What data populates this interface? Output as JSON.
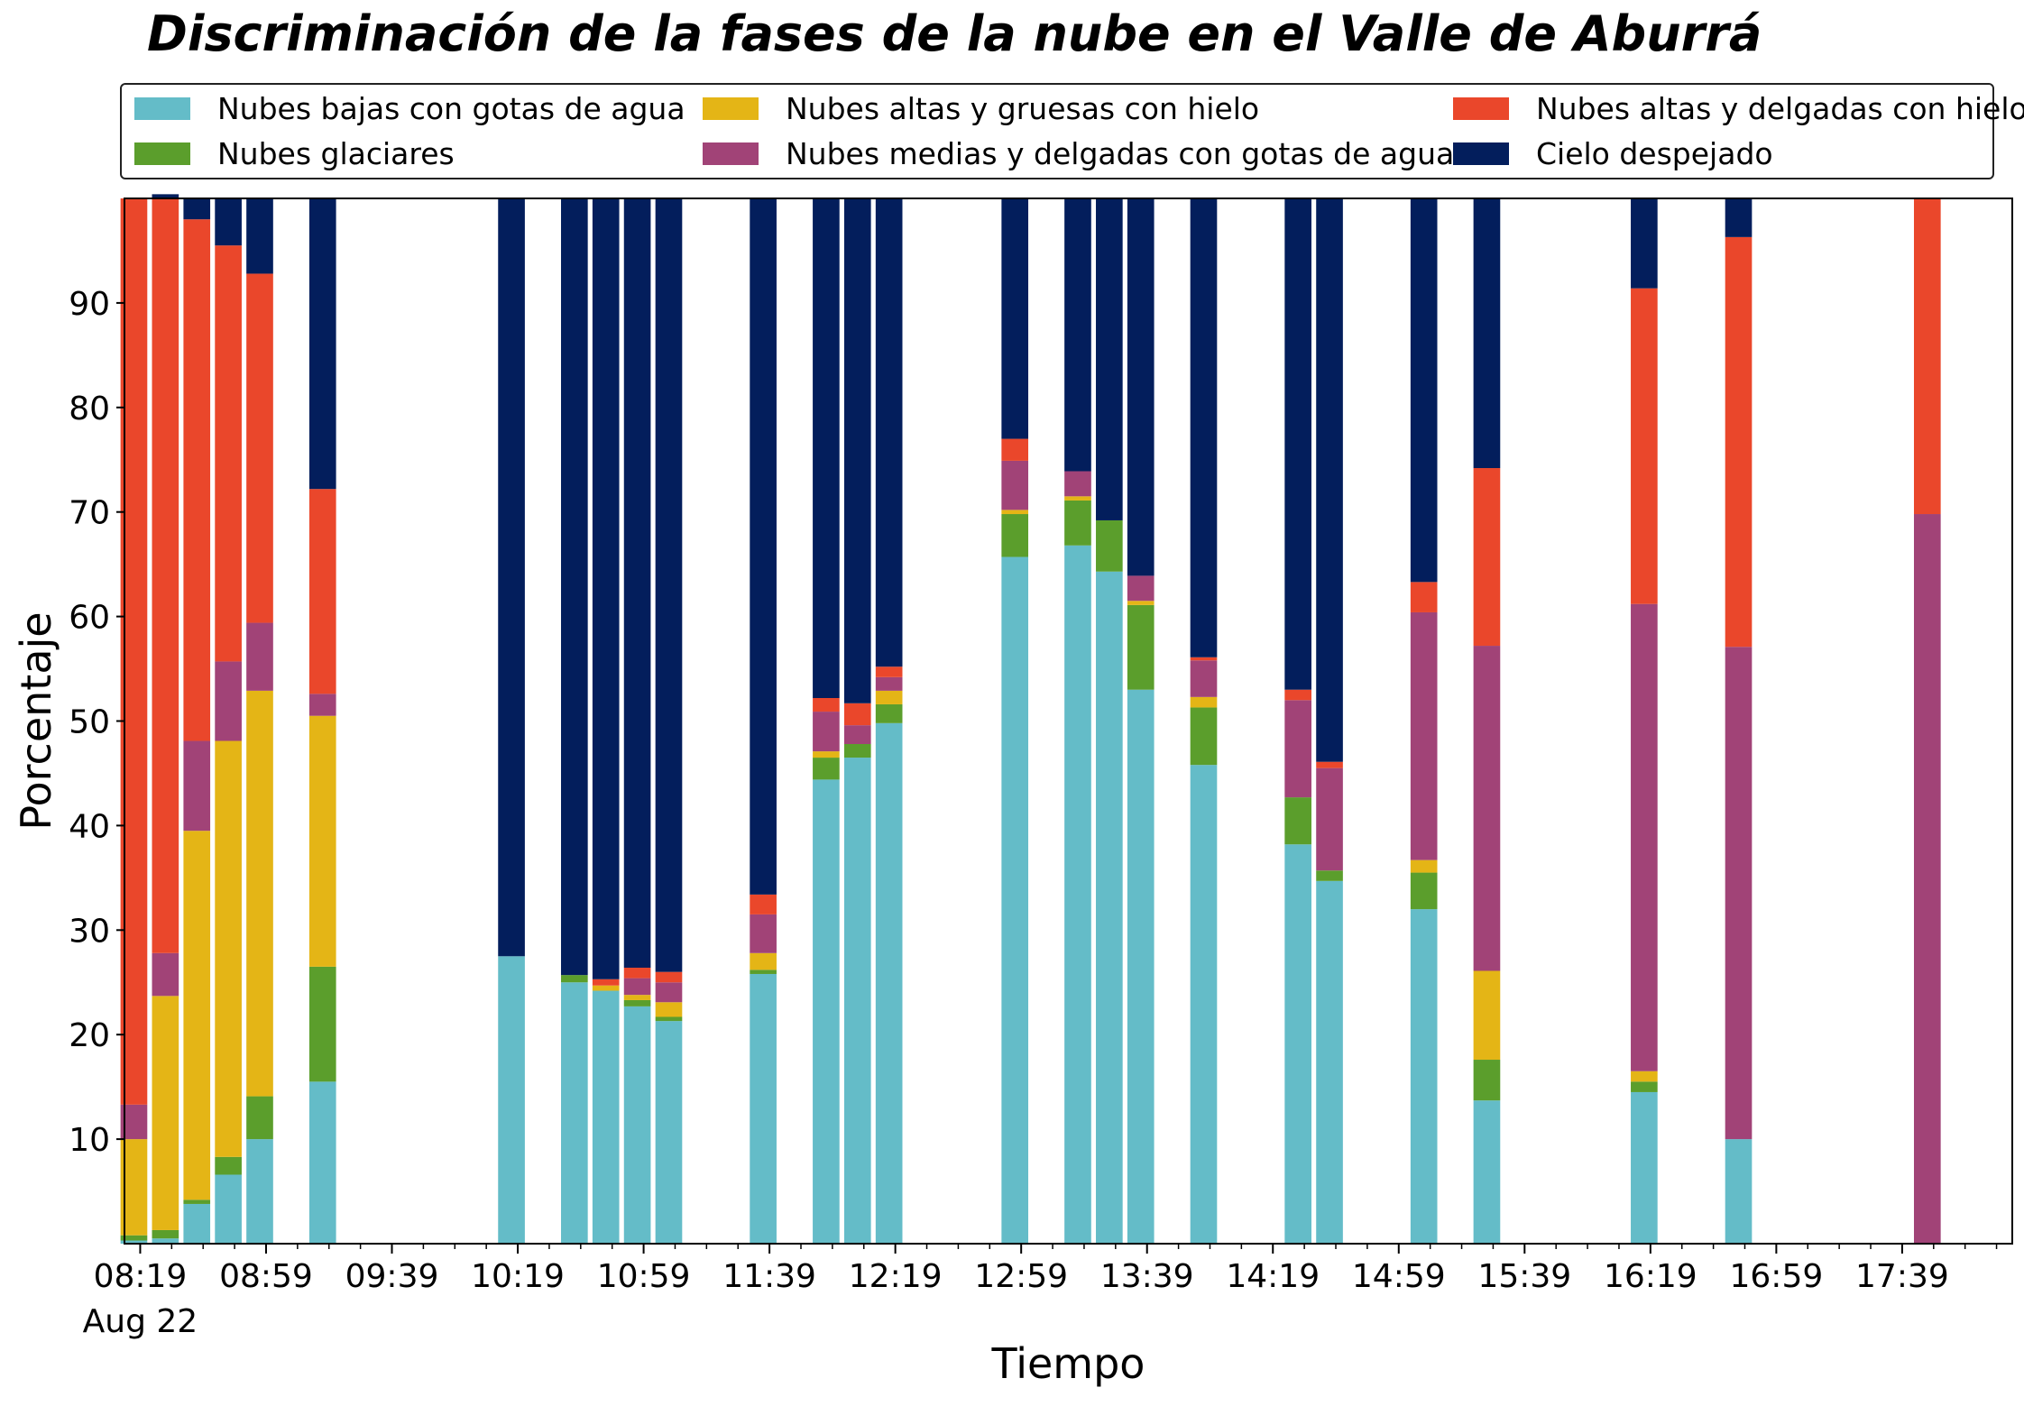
{
  "chart_data": {
    "type": "bar",
    "stacked": true,
    "title": "Discriminación de la fases de la nube en el Valle de Aburrá",
    "xlabel": "Tiempo",
    "ylabel": "Porcentaje",
    "ylim": [
      0,
      100
    ],
    "yticks": [
      10,
      20,
      30,
      40,
      50,
      60,
      70,
      80,
      90
    ],
    "xlim": [
      "08:14",
      "18:14"
    ],
    "xtick_labels": [
      "08:19",
      "08:59",
      "09:39",
      "10:19",
      "10:59",
      "11:39",
      "12:19",
      "12:59",
      "13:39",
      "14:19",
      "14:59",
      "15:39",
      "16:19",
      "16:59",
      "17:39"
    ],
    "x_date_label": "Aug 22",
    "legend_placement": "top",
    "grid": false,
    "bar_width_minutes": 8.5,
    "x": [
      "08:17",
      "08:27",
      "08:37",
      "08:47",
      "08:57",
      "09:17",
      "10:17",
      "10:37",
      "10:47",
      "10:57",
      "11:07",
      "11:37",
      "11:57",
      "12:07",
      "12:17",
      "12:57",
      "13:17",
      "13:27",
      "13:37",
      "13:57",
      "14:27",
      "14:37",
      "15:07",
      "15:27",
      "16:17",
      "16:47",
      "17:47"
    ],
    "series": [
      {
        "name": "Nubes bajas con gotas de agua",
        "color": "#64bcc8",
        "values": [
          0.3,
          0.5,
          3.8,
          6.6,
          10.0,
          15.5,
          27.5,
          25.0,
          24.2,
          22.7,
          21.3,
          25.8,
          44.4,
          46.5,
          49.8,
          65.7,
          66.8,
          64.3,
          53.0,
          45.8,
          38.2,
          34.7,
          32.0,
          13.7,
          14.5,
          10.0,
          0
        ]
      },
      {
        "name": "Nubes glaciares",
        "color": "#5b9e2c",
        "values": [
          0.5,
          0.8,
          0.4,
          1.7,
          4.1,
          11.0,
          0,
          0.7,
          0,
          0.6,
          0.4,
          0.4,
          2.1,
          1.3,
          1.8,
          4.1,
          4.3,
          4.9,
          8.1,
          5.5,
          4.5,
          1.0,
          3.5,
          3.9,
          1.0,
          0,
          0
        ]
      },
      {
        "name": "Nubes altas y gruesas con hielo",
        "color": "#e4b516",
        "values": [
          9.2,
          22.4,
          35.3,
          39.8,
          38.8,
          24.0,
          0,
          0,
          0.5,
          0.5,
          1.4,
          1.6,
          0.6,
          0,
          1.3,
          0.4,
          0.4,
          0,
          0.4,
          1.0,
          0,
          0,
          1.2,
          8.5,
          1.0,
          0,
          0
        ]
      },
      {
        "name": "Nubes medias y delgadas con gotas de agua",
        "color": "#a14377",
        "values": [
          3.3,
          4.1,
          8.6,
          7.6,
          6.5,
          2.1,
          0,
          0,
          0,
          1.6,
          1.9,
          3.7,
          3.8,
          1.8,
          1.3,
          4.7,
          2.4,
          0,
          2.4,
          3.5,
          9.3,
          9.8,
          23.7,
          31.1,
          44.7,
          47.1,
          69.8
        ]
      },
      {
        "name": "Nubes altas y delgadas con hielo",
        "color": "#ea472b",
        "values": [
          86.7,
          72.2,
          49.9,
          39.8,
          33.4,
          19.6,
          0,
          0,
          0.6,
          1.0,
          1.0,
          1.9,
          1.3,
          2.1,
          1.0,
          2.1,
          0,
          0,
          0,
          0.3,
          1.0,
          0.6,
          2.9,
          17.0,
          30.2,
          39.2,
          30.2
        ]
      },
      {
        "name": "Cielo despejado",
        "color": "#031e5c",
        "values": [
          0,
          0.4,
          2.0,
          4.5,
          7.2,
          27.8,
          72.5,
          74.3,
          74.7,
          73.6,
          74.0,
          66.6,
          47.8,
          48.3,
          44.8,
          23.0,
          26.1,
          30.8,
          36.1,
          43.9,
          47.0,
          53.9,
          36.7,
          25.8,
          8.6,
          3.7,
          0
        ]
      }
    ]
  }
}
